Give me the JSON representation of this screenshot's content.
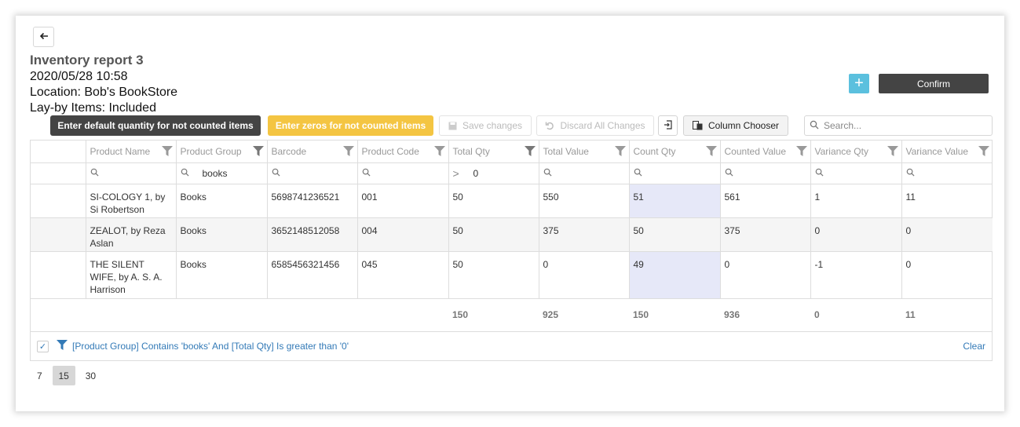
{
  "header": {
    "title": "Inventory report 3",
    "datetime": "2020/05/28 10:58",
    "location": "Location: Bob's BookStore",
    "layby": "Lay-by Items: Included",
    "confirm_label": "Confirm",
    "plus_label": "+"
  },
  "toolbar": {
    "default_qty_label": "Enter default quantity for not counted items",
    "zeros_label": "Enter zeros for not counted items",
    "save_label": "Save changes",
    "discard_label": "Discard All Changes",
    "column_chooser_label": "Column Chooser",
    "search_placeholder": "Search..."
  },
  "colors": {
    "primary_dark": "#444444",
    "zero_btn": "#f4c542",
    "plus_btn": "#5bc0de",
    "link": "#337ab7",
    "highlight_cell": "#e6e8f8"
  },
  "grid": {
    "columns": [
      "Product Name",
      "Product Group",
      "Barcode",
      "Product Code",
      "Total Qty",
      "Total Value",
      "Count Qty",
      "Counted Value",
      "Variance Qty",
      "Variance Value"
    ],
    "filters": {
      "product_group": "books",
      "total_qty_op": ">",
      "total_qty": "0"
    },
    "rows": [
      {
        "name": "SI-COLOGY 1, by Si Robertson",
        "group": "Books",
        "barcode": "5698741236521",
        "code": "001",
        "total_qty": "50",
        "total_value": "550",
        "count_qty": "51",
        "counted_value": "561",
        "var_qty": "1",
        "var_value": "11"
      },
      {
        "name": "ZEALOT, by Reza Aslan",
        "group": "Books",
        "barcode": "3652148512058",
        "code": "004",
        "total_qty": "50",
        "total_value": "375",
        "count_qty": "50",
        "counted_value": "375",
        "var_qty": "0",
        "var_value": "0"
      },
      {
        "name": "THE SILENT WIFE, by A. S. A. Harrison",
        "group": "Books",
        "barcode": "6585456321456",
        "code": "045",
        "total_qty": "50",
        "total_value": "0",
        "count_qty": "49",
        "counted_value": "0",
        "var_qty": "-1",
        "var_value": "0"
      }
    ],
    "totals": {
      "total_qty": "150",
      "total_value": "925",
      "count_qty": "150",
      "counted_value": "936",
      "var_qty": "0",
      "var_value": "11"
    },
    "filter_summary": "[Product Group] Contains 'books' And [Total Qty] Is greater than '0'",
    "clear_label": "Clear"
  },
  "pager": {
    "sizes": [
      "7",
      "15",
      "30"
    ],
    "selected": "15"
  }
}
